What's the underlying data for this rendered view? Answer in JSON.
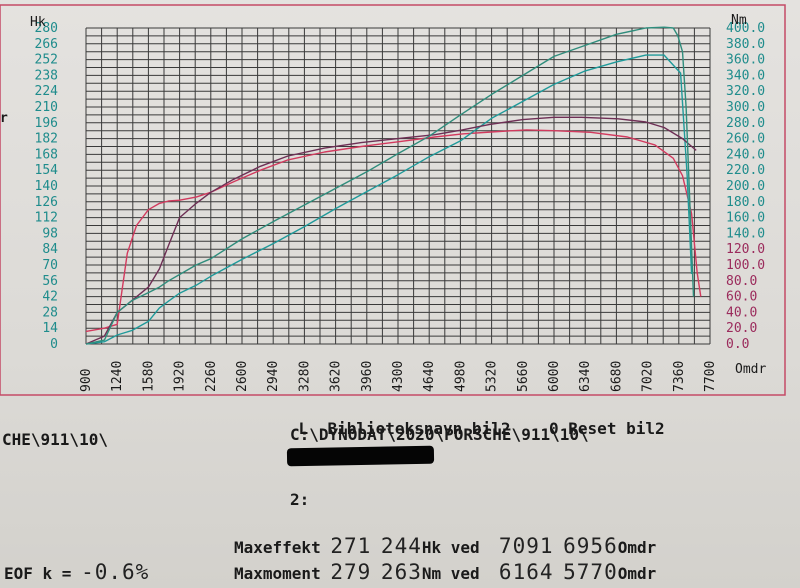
{
  "chart_data": {
    "type": "line",
    "left_axis": {
      "unit": "Hk",
      "ticks": [
        "0",
        "14",
        "28",
        "42",
        "56",
        "70",
        "84",
        "98",
        "112",
        "126",
        "140",
        "154",
        "168",
        "182",
        "196",
        "210",
        "224",
        "238",
        "252",
        "266",
        "280"
      ],
      "range": [
        0,
        280
      ]
    },
    "right_axis": {
      "unit": "Nm",
      "ticks": [
        "0.0",
        "20.0",
        "40.0",
        "60.0",
        "80.0",
        "100.0",
        "120.0",
        "140.0",
        "160.0",
        "180.0",
        "200.0",
        "220.0",
        "240.0",
        "260.0",
        "280.0",
        "300.0",
        "320.0",
        "340.0",
        "360.0",
        "380.0",
        "400.0"
      ],
      "range": [
        0,
        400
      ]
    },
    "x_axis": {
      "unit": "Omdr",
      "ticks": [
        "900",
        "1240",
        "1580",
        "1920",
        "2260",
        "2600",
        "2940",
        "3280",
        "3620",
        "3960",
        "4300",
        "4640",
        "4980",
        "5320",
        "5660",
        "6000",
        "6340",
        "6680",
        "7020",
        "7360",
        "7700"
      ],
      "range": [
        900,
        7700
      ]
    },
    "grid": true,
    "series": [
      {
        "color": "#d23a5e",
        "axis": "right",
        "x": [
          900,
          1100,
          1240,
          1350,
          1450,
          1580,
          1700,
          1800,
          1920,
          2100,
          2260,
          2500,
          2800,
          3100,
          3500,
          3900,
          4300,
          4700,
          5000,
          5400,
          5700,
          6000,
          6400,
          6800,
          7100,
          7300,
          7400,
          7500,
          7560,
          7600
        ],
        "values": [
          16,
          20,
          25,
          115,
          150,
          170,
          178,
          181,
          182,
          186,
          192,
          205,
          220,
          233,
          243,
          250,
          256,
          262,
          266,
          269,
          271,
          270,
          268,
          262,
          252,
          235,
          213,
          165,
          90,
          60
        ]
      },
      {
        "color": "#1f9a9a",
        "axis": "left",
        "x": [
          900,
          1100,
          1240,
          1400,
          1580,
          1700,
          1800,
          1920,
          2100,
          2260,
          2600,
          2940,
          3280,
          3620,
          3960,
          4300,
          4640,
          4980,
          5320,
          5660,
          6000,
          6340,
          6680,
          7000,
          7200,
          7380,
          7450,
          7500
        ],
        "values": [
          0,
          2,
          8,
          12,
          20,
          32,
          38,
          45,
          52,
          60,
          75,
          89,
          104,
          120,
          135,
          150,
          166,
          180,
          200,
          215,
          230,
          242,
          250,
          256,
          256,
          240,
          150,
          62
        ]
      },
      {
        "color": "#6e2f55",
        "axis": "right",
        "x": [
          900,
          1100,
          1240,
          1400,
          1580,
          1700,
          1800,
          1920,
          2100,
          2260,
          2500,
          2800,
          3100,
          3500,
          3900,
          4300,
          4700,
          5000,
          5300,
          5660,
          6000,
          6300,
          6700,
          7000,
          7200,
          7400,
          7550
        ],
        "values": [
          0,
          10,
          40,
          55,
          72,
          95,
          125,
          160,
          178,
          192,
          208,
          225,
          238,
          248,
          255,
          260,
          265,
          271,
          278,
          284,
          287,
          287,
          285,
          281,
          274,
          260,
          245
        ]
      },
      {
        "color": "#2f8d7c",
        "axis": "right",
        "x": [
          900,
          1100,
          1240,
          1400,
          1580,
          1700,
          1800,
          1920,
          2100,
          2260,
          2600,
          2940,
          3280,
          3620,
          3960,
          4300,
          4640,
          4980,
          5320,
          5660,
          6000,
          6340,
          6680,
          7000,
          7200,
          7300,
          7350,
          7400,
          7440,
          7480,
          7520
        ],
        "values": [
          0,
          5,
          40,
          55,
          65,
          72,
          80,
          88,
          100,
          108,
          133,
          155,
          176,
          197,
          218,
          241,
          263,
          290,
          316,
          340,
          364,
          378,
          392,
          400,
          401,
          400,
          390,
          370,
          300,
          180,
          60
        ]
      }
    ]
  },
  "info": {
    "lib_key": "L",
    "lib_label": "Biblioteksnavn bil2",
    "reset_key": "0",
    "reset_label": "Reset bil2",
    "path_left": "CHE\\911\\10\\",
    "path_full": "C:\\DYNODAT\\2020\\PORSCHE\\911\\10\\",
    "slot_label": "2:",
    "maxeffekt_label": "Maxeffekt",
    "maxeffekt_v1": "271",
    "maxeffekt_v2": "244",
    "maxeffekt_unit": "Hk ved",
    "maxeffekt_rpm1": "7091",
    "maxeffekt_rpm2": "6956",
    "rpm_unit": "Omdr",
    "maxmoment_label": "Maxmoment",
    "maxmoment_v1": "279",
    "maxmoment_v2": "263",
    "maxmoment_unit": "Nm ved",
    "maxmoment_rpm1": "6164",
    "maxmoment_rpm2": "5770",
    "eof_label": "EOF k =",
    "eof_value": "-0.6%",
    "left_edge_char": "r"
  }
}
